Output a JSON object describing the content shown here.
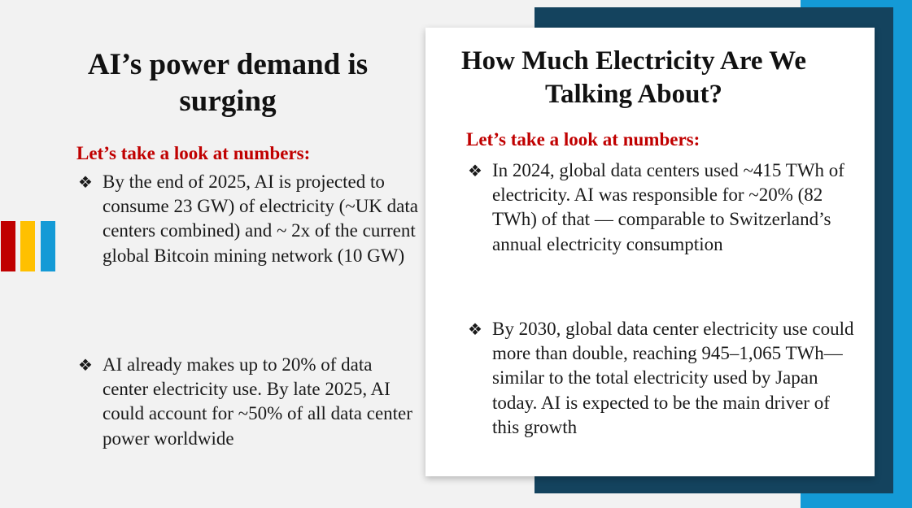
{
  "colors": {
    "accent_red": "#c00000",
    "accent_yellow": "#ffc000",
    "accent_blue": "#149ad6",
    "navy": "#14435e"
  },
  "left": {
    "title": "AI’s power demand is surging",
    "subhead": "Let’s take a look at numbers:",
    "bullets": [
      "By the end of 2025, AI is projected to consume 23 GW) of electricity (~UK data centers combined) and ~ 2x of the current global Bitcoin mining network (10 GW)",
      "AI already makes up to 20% of data center electricity use. By late 2025, AI could account for ~50% of all data center power worldwide"
    ]
  },
  "right": {
    "title": "How Much Electricity Are We Talking About?",
    "subhead": "Let’s take a look at numbers:",
    "bullets": [
      "In 2024, global data centers used ~415 TWh of electricity. AI was responsible for ~20% (82 TWh) of that — comparable to Switzerland’s annual electricity consumption",
      "By 2030, global data center electricity use could more than double, reaching 945–1,065 TWh—similar to the total electricity used by Japan today. AI is expected to be the main driver of this growth"
    ]
  },
  "bullet_glyph": "❖",
  "icons": [
    "diamond-bullet-icon"
  ]
}
